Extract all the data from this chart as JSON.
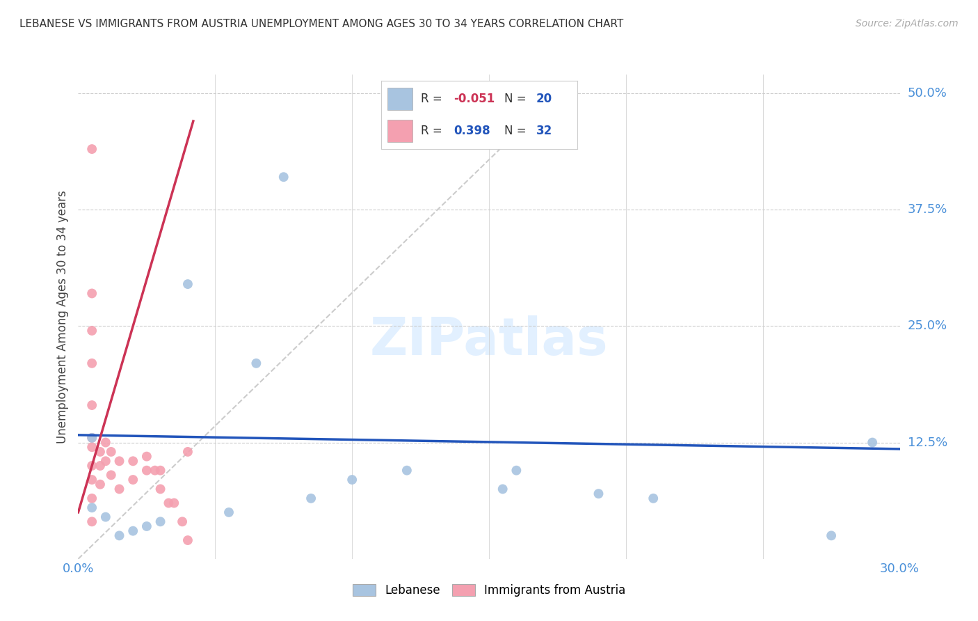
{
  "title": "LEBANESE VS IMMIGRANTS FROM AUSTRIA UNEMPLOYMENT AMONG AGES 30 TO 34 YEARS CORRELATION CHART",
  "source": "Source: ZipAtlas.com",
  "ylabel": "Unemployment Among Ages 30 to 34 years",
  "xlim": [
    0.0,
    0.3
  ],
  "ylim": [
    0.0,
    0.52
  ],
  "xticks": [
    0.0,
    0.05,
    0.1,
    0.15,
    0.2,
    0.25,
    0.3
  ],
  "xticklabels": [
    "0.0%",
    "",
    "",
    "",
    "",
    "",
    "30.0%"
  ],
  "yticks": [
    0.0,
    0.125,
    0.25,
    0.375,
    0.5
  ],
  "yticklabels": [
    "",
    "12.5%",
    "25.0%",
    "37.5%",
    "50.0%"
  ],
  "blue_scatter_x": [
    0.075,
    0.04,
    0.005,
    0.005,
    0.01,
    0.015,
    0.02,
    0.025,
    0.03,
    0.055,
    0.065,
    0.085,
    0.1,
    0.12,
    0.155,
    0.16,
    0.19,
    0.21,
    0.275,
    0.29
  ],
  "blue_scatter_y": [
    0.41,
    0.295,
    0.13,
    0.055,
    0.045,
    0.025,
    0.03,
    0.035,
    0.04,
    0.05,
    0.21,
    0.065,
    0.085,
    0.095,
    0.075,
    0.095,
    0.07,
    0.065,
    0.025,
    0.125
  ],
  "pink_scatter_x": [
    0.005,
    0.005,
    0.005,
    0.005,
    0.005,
    0.005,
    0.005,
    0.005,
    0.005,
    0.005,
    0.008,
    0.008,
    0.008,
    0.01,
    0.01,
    0.012,
    0.012,
    0.015,
    0.015,
    0.02,
    0.02,
    0.025,
    0.025,
    0.028,
    0.03,
    0.03,
    0.033,
    0.035,
    0.038,
    0.04,
    0.04,
    0.005
  ],
  "pink_scatter_y": [
    0.44,
    0.285,
    0.245,
    0.21,
    0.165,
    0.13,
    0.12,
    0.1,
    0.085,
    0.04,
    0.115,
    0.1,
    0.08,
    0.125,
    0.105,
    0.115,
    0.09,
    0.105,
    0.075,
    0.105,
    0.085,
    0.11,
    0.095,
    0.095,
    0.095,
    0.075,
    0.06,
    0.06,
    0.04,
    0.02,
    0.115,
    0.065
  ],
  "blue_line_x": [
    0.0,
    0.3
  ],
  "blue_line_y": [
    0.133,
    0.118
  ],
  "pink_line_x": [
    0.0,
    0.042
  ],
  "pink_line_y": [
    0.05,
    0.47
  ],
  "diag_line_x": [
    0.0,
    0.175
  ],
  "diag_line_y": [
    0.0,
    0.5
  ],
  "blue_color": "#a8c4e0",
  "pink_color": "#f4a0b0",
  "blue_line_color": "#2255bb",
  "pink_line_color": "#cc3355",
  "diag_line_color": "#cccccc",
  "legend_r_blue": "-0.051",
  "legend_n_blue": "20",
  "legend_r_pink": "0.398",
  "legend_n_pink": "32",
  "legend_label_blue": "Lebanese",
  "legend_label_pink": "Immigrants from Austria",
  "marker_size": 100,
  "background_color": "#ffffff",
  "grid_color": "#cccccc"
}
